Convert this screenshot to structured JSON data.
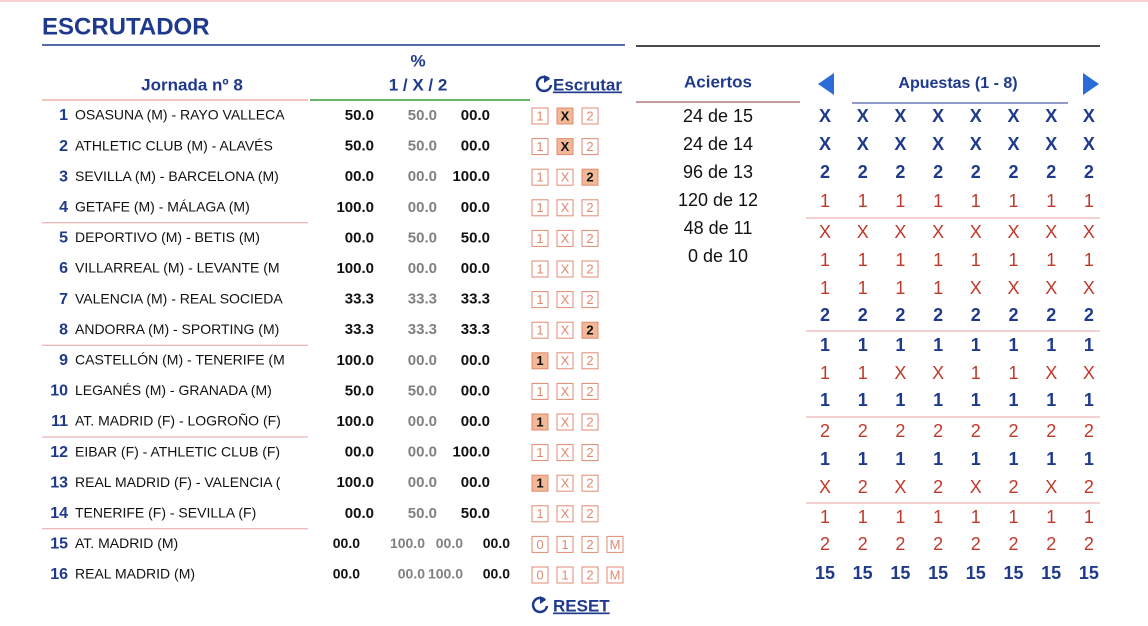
{
  "title": "ESCRUTADOR",
  "header": {
    "percent": "%",
    "jornada": "Jornada nº 8",
    "columns": "1 / X / 2",
    "escrutar": "Escrutar",
    "aciertos": "Aciertos",
    "apuestas": "Apuestas (1 - 8)",
    "reset": "RESET"
  },
  "matches": [
    {
      "num": "1",
      "name": "OSASUNA (M) - RAYO VALLECA",
      "percents": [
        "50.0",
        "50.0",
        "00.0"
      ],
      "options": [
        "1",
        "X",
        "2"
      ],
      "selected": "X"
    },
    {
      "num": "2",
      "name": "ATHLETIC CLUB (M) - ALAVÉS",
      "percents": [
        "50.0",
        "50.0",
        "00.0"
      ],
      "options": [
        "1",
        "X",
        "2"
      ],
      "selected": "X"
    },
    {
      "num": "3",
      "name": "SEVILLA (M) - BARCELONA (M)",
      "percents": [
        "00.0",
        "00.0",
        "100.0"
      ],
      "options": [
        "1",
        "X",
        "2"
      ],
      "selected": "2"
    },
    {
      "num": "4",
      "name": "GETAFE (M) - MÁLAGA (M)",
      "percents": [
        "100.0",
        "00.0",
        "00.0"
      ],
      "options": [
        "1",
        "X",
        "2"
      ],
      "selected": null
    },
    {
      "num": "5",
      "name": "DEPORTIVO (M) - BETIS (M)",
      "percents": [
        "00.0",
        "50.0",
        "50.0"
      ],
      "options": [
        "1",
        "X",
        "2"
      ],
      "selected": null
    },
    {
      "num": "6",
      "name": "VILLARREAL (M) - LEVANTE (M",
      "percents": [
        "100.0",
        "00.0",
        "00.0"
      ],
      "options": [
        "1",
        "X",
        "2"
      ],
      "selected": null
    },
    {
      "num": "7",
      "name": "VALENCIA (M) - REAL SOCIEDA",
      "percents": [
        "33.3",
        "33.3",
        "33.3"
      ],
      "options": [
        "1",
        "X",
        "2"
      ],
      "selected": null
    },
    {
      "num": "8",
      "name": "ANDORRA (M) - SPORTING (M)",
      "percents": [
        "33.3",
        "33.3",
        "33.3"
      ],
      "options": [
        "1",
        "X",
        "2"
      ],
      "selected": "2"
    },
    {
      "num": "9",
      "name": "CASTELLÓN (M) - TENERIFE (M",
      "percents": [
        "100.0",
        "00.0",
        "00.0"
      ],
      "options": [
        "1",
        "X",
        "2"
      ],
      "selected": "1"
    },
    {
      "num": "10",
      "name": "LEGANÉS (M) - GRANADA (M)",
      "percents": [
        "50.0",
        "50.0",
        "00.0"
      ],
      "options": [
        "1",
        "X",
        "2"
      ],
      "selected": null
    },
    {
      "num": "11",
      "name": "AT. MADRID (F) - LOGROÑO (F)",
      "percents": [
        "100.0",
        "00.0",
        "00.0"
      ],
      "options": [
        "1",
        "X",
        "2"
      ],
      "selected": "1"
    },
    {
      "num": "12",
      "name": "EIBAR (F) - ATHLETIC CLUB (F)",
      "percents": [
        "00.0",
        "00.0",
        "100.0"
      ],
      "options": [
        "1",
        "X",
        "2"
      ],
      "selected": null
    },
    {
      "num": "13",
      "name": "REAL MADRID (F) - VALENCIA (",
      "percents": [
        "100.0",
        "00.0",
        "00.0"
      ],
      "options": [
        "1",
        "X",
        "2"
      ],
      "selected": "1"
    },
    {
      "num": "14",
      "name": "TENERIFE (F) - SEVILLA (F)",
      "percents": [
        "00.0",
        "50.0",
        "50.0"
      ],
      "options": [
        "1",
        "X",
        "2"
      ],
      "selected": null
    },
    {
      "num": "15",
      "name": "AT. MADRID (M)",
      "percents": [
        "00.0",
        "100.0",
        "00.0",
        "00.0"
      ],
      "options": [
        "0",
        "1",
        "2",
        "M"
      ],
      "selected": null
    },
    {
      "num": "16",
      "name": "REAL MADRID (M)",
      "percents": [
        "00.0",
        "00.0",
        "100.0",
        "00.0"
      ],
      "options": [
        "0",
        "1",
        "2",
        "M"
      ],
      "selected": null
    }
  ],
  "aciertos": [
    "24 de 15",
    "24 de 14",
    "96 de 13",
    "120 de 12",
    "48 de 11",
    "0 de 10"
  ],
  "apuestas": [
    [
      "X",
      "X",
      "X",
      "X",
      "X",
      "X",
      "X",
      "X"
    ],
    [
      "X",
      "X",
      "X",
      "X",
      "X",
      "X",
      "X",
      "X"
    ],
    [
      "2",
      "2",
      "2",
      "2",
      "2",
      "2",
      "2",
      "2"
    ],
    [
      "1",
      "1",
      "1",
      "1",
      "1",
      "1",
      "1",
      "1"
    ],
    [
      "X",
      "X",
      "X",
      "X",
      "X",
      "X",
      "X",
      "X"
    ],
    [
      "1",
      "1",
      "1",
      "1",
      "1",
      "1",
      "1",
      "1"
    ],
    [
      "1",
      "1",
      "1",
      "1",
      "X",
      "X",
      "X",
      "X"
    ],
    [
      "2",
      "2",
      "2",
      "2",
      "2",
      "2",
      "2",
      "2"
    ],
    [
      "1",
      "1",
      "1",
      "1",
      "1",
      "1",
      "1",
      "1"
    ],
    [
      "1",
      "1",
      "X",
      "X",
      "1",
      "1",
      "X",
      "X"
    ],
    [
      "1",
      "1",
      "1",
      "1",
      "1",
      "1",
      "1",
      "1"
    ],
    [
      "2",
      "2",
      "2",
      "2",
      "2",
      "2",
      "2",
      "2"
    ],
    [
      "1",
      "1",
      "1",
      "1",
      "1",
      "1",
      "1",
      "1"
    ],
    [
      "X",
      "2",
      "X",
      "2",
      "X",
      "2",
      "X",
      "2"
    ],
    [
      "1",
      "1",
      "1",
      "1",
      "1",
      "1",
      "1",
      "1"
    ],
    [
      "2",
      "2",
      "2",
      "2",
      "2",
      "2",
      "2",
      "2"
    ]
  ],
  "totals": [
    "15",
    "15",
    "15",
    "15",
    "15",
    "15",
    "15",
    "15"
  ]
}
